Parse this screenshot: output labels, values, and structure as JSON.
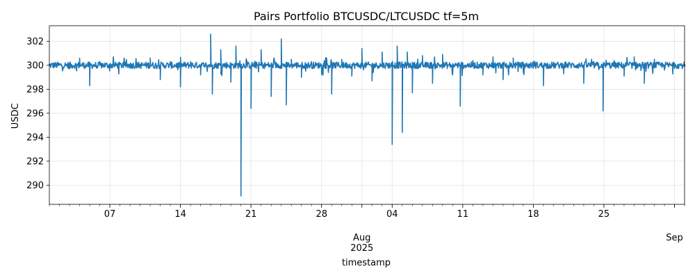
{
  "chart_data": {
    "type": "line",
    "title": "Pairs Portfolio BTCUSDC/LTCUSDC tf=5m",
    "xlabel": "timestamp",
    "ylabel": "USDC",
    "x_range": [
      "2025-07-01",
      "2025-09-02"
    ],
    "ylim": [
      288.4,
      303.3
    ],
    "y_ticks": [
      290,
      292,
      294,
      296,
      298,
      300,
      302
    ],
    "x_ticks": [
      {
        "date": "2025-07-07",
        "label": "07"
      },
      {
        "date": "2025-07-14",
        "label": "14"
      },
      {
        "date": "2025-07-21",
        "label": "21"
      },
      {
        "date": "2025-07-28",
        "label": "28"
      },
      {
        "date": "2025-08-01",
        "label": "Aug",
        "sublabel": "2025"
      },
      {
        "date": "2025-08-04",
        "label": "04"
      },
      {
        "date": "2025-08-11",
        "label": "11"
      },
      {
        "date": "2025-08-18",
        "label": "18"
      },
      {
        "date": "2025-08-25",
        "label": "25"
      },
      {
        "date": "2025-09-01",
        "label": "Sep"
      }
    ],
    "grid": true,
    "color": "#1f77b4",
    "baseline": 300.0,
    "series": [
      {
        "x": [
          "2025-07-01",
          "2025-07-03",
          "2025-07-04",
          "2025-07-05",
          "2025-07-06",
          "2025-07-07",
          "2025-07-09",
          "2025-07-10",
          "2025-07-11",
          "2025-07-12",
          "2025-07-13",
          "2025-07-14",
          "2025-07-15",
          "2025-07-16",
          "2025-07-17",
          "2025-07-17T04:00",
          "2025-07-18",
          "2025-07-19",
          "2025-07-19T12:00",
          "2025-07-20",
          "2025-07-20T14:00",
          "2025-07-21",
          "2025-07-22",
          "2025-07-23",
          "2025-07-24",
          "2025-07-24T12:00",
          "2025-07-25",
          "2025-07-26",
          "2025-07-27",
          "2025-07-28",
          "2025-07-29",
          "2025-07-30",
          "2025-07-31",
          "2025-08-01",
          "2025-08-02",
          "2025-08-03",
          "2025-08-04",
          "2025-08-04T12:00",
          "2025-08-05",
          "2025-08-05T12:00",
          "2025-08-06",
          "2025-08-07",
          "2025-08-08",
          "2025-08-09",
          "2025-08-10",
          "2025-08-10T18:00",
          "2025-08-12",
          "2025-08-13",
          "2025-08-14",
          "2025-08-15",
          "2025-08-16",
          "2025-08-17",
          "2025-08-18",
          "2025-08-19",
          "2025-08-20",
          "2025-08-21",
          "2025-08-22",
          "2025-08-23",
          "2025-08-24",
          "2025-08-24T22:00",
          "2025-08-26",
          "2025-08-27",
          "2025-08-28",
          "2025-08-29",
          "2025-08-30",
          "2025-08-31",
          "2025-09-01",
          "2025-09-02"
        ],
        "y": [
          300.1,
          299.7,
          300.6,
          298.3,
          300.3,
          299.9,
          300.1,
          299.9,
          300.6,
          298.8,
          300.3,
          298.2,
          300.3,
          299.2,
          302.6,
          297.6,
          301.3,
          298.6,
          301.6,
          289.1,
          300.4,
          296.4,
          301.3,
          297.4,
          302.2,
          296.7,
          300.5,
          299.0,
          300.3,
          299.4,
          297.6,
          300.5,
          299.1,
          301.4,
          298.7,
          301.1,
          293.4,
          301.6,
          294.4,
          301.1,
          297.7,
          300.8,
          298.5,
          300.9,
          299.2,
          296.6,
          300.4,
          299.2,
          300.7,
          298.8,
          300.6,
          299.4,
          300.1,
          298.3,
          300.2,
          299.3,
          300.1,
          298.5,
          300.3,
          296.2,
          300.4,
          299.1,
          300.7,
          298.5,
          300.5,
          299.6,
          300.2,
          299.9
        ]
      }
    ]
  }
}
